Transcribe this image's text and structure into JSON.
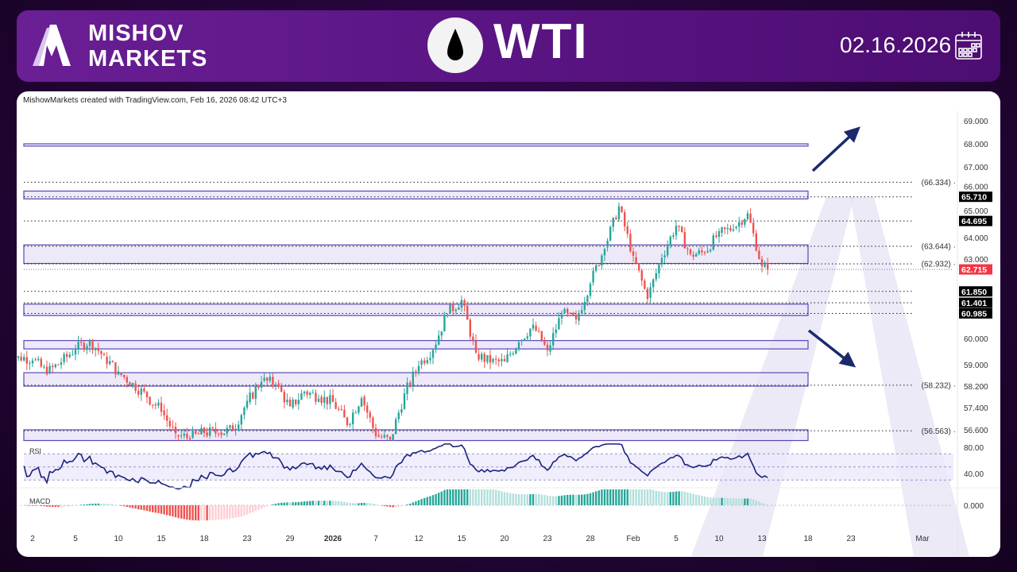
{
  "header": {
    "brand_line1": "MISHOV",
    "brand_line2": "MARKETS",
    "title": "WTI",
    "date": "02.16.2026"
  },
  "credit": "MishowMarkets created with TradingView.com, Feb 16, 2026 08:42 UTC+3",
  "colors": {
    "up": "#26a69a",
    "down": "#ef5350",
    "zone_fill": "#e8e4f8",
    "zone_border": "#5b45b8",
    "rsi_line": "#1a237e",
    "arrow": "#1a2a6c"
  },
  "chart_data": {
    "type": "candlestick",
    "symbol": "WTI",
    "dates": [
      "2025-12-01",
      "2025-12-02",
      "2025-12-03",
      "2025-12-04",
      "2025-12-05",
      "2025-12-08",
      "2025-12-09",
      "2025-12-10",
      "2025-12-11",
      "2025-12-12",
      "2025-12-15",
      "2025-12-16",
      "2025-12-17",
      "2025-12-18",
      "2025-12-19",
      "2025-12-22",
      "2025-12-23",
      "2025-12-24",
      "2025-12-26",
      "2025-12-29",
      "2025-12-30",
      "2025-12-31",
      "2026-01-02",
      "2026-01-05",
      "2026-01-06",
      "2026-01-07",
      "2026-01-08",
      "2026-01-09",
      "2026-01-12",
      "2026-01-13",
      "2026-01-14",
      "2026-01-15",
      "2026-01-16",
      "2026-01-19",
      "2026-01-20",
      "2026-01-21",
      "2026-01-22",
      "2026-01-23",
      "2026-01-26",
      "2026-01-27",
      "2026-01-28",
      "2026-01-29",
      "2026-01-30",
      "2026-02-02",
      "2026-02-03",
      "2026-02-04",
      "2026-02-05",
      "2026-02-06",
      "2026-02-09",
      "2026-02-10",
      "2026-02-11",
      "2026-02-12",
      "2026-02-13",
      "2026-02-16"
    ],
    "close": [
      59.3,
      59.2,
      58.7,
      59.1,
      59.6,
      59.9,
      59.3,
      58.7,
      58.3,
      57.8,
      57.3,
      56.4,
      56.3,
      56.5,
      56.5,
      56.6,
      57.6,
      58.4,
      58.3,
      57.4,
      58.0,
      57.8,
      57.6,
      56.8,
      57.8,
      56.4,
      56.2,
      57.9,
      59.0,
      59.6,
      61.0,
      61.5,
      59.4,
      59.1,
      59.1,
      59.9,
      60.5,
      59.5,
      61.0,
      60.7,
      62.2,
      63.6,
      65.3,
      63.2,
      61.6,
      63.2,
      64.5,
      63.3,
      63.4,
      64.2,
      64.4,
      65.0,
      62.8,
      62.715
    ],
    "x_tick_labels": [
      {
        "label": "2",
        "date": "2025-12-02"
      },
      {
        "label": "5",
        "date": "2025-12-05"
      },
      {
        "label": "10",
        "date": "2025-12-10"
      },
      {
        "label": "15",
        "date": "2025-12-15"
      },
      {
        "label": "18",
        "date": "2025-12-18"
      },
      {
        "label": "23",
        "date": "2025-12-23"
      },
      {
        "label": "29",
        "date": "2025-12-29"
      },
      {
        "label": "2026",
        "date": "2026-01-02",
        "bold": true
      },
      {
        "label": "7",
        "date": "2026-01-07"
      },
      {
        "label": "12",
        "date": "2026-01-12"
      },
      {
        "label": "15",
        "date": "2026-01-15"
      },
      {
        "label": "20",
        "date": "2026-01-20"
      },
      {
        "label": "23",
        "date": "2026-01-23"
      },
      {
        "label": "28",
        "date": "2026-01-28"
      },
      {
        "label": "Feb",
        "date": "2026-02-02"
      },
      {
        "label": "5",
        "date": "2026-02-05"
      },
      {
        "label": "10",
        "date": "2026-02-10"
      },
      {
        "label": "13",
        "date": "2026-02-13"
      },
      {
        "label": "18",
        "date": "2026-02-18"
      },
      {
        "label": "23",
        "date": "2026-02-23"
      },
      {
        "label": "Mar",
        "date": "2026-03-02"
      }
    ],
    "y_tick_labels": [
      "69.000",
      "68.000",
      "67.000",
      "66.000",
      "65.000",
      "64.000",
      "63.000",
      "60.000",
      "59.000",
      "58.200",
      "57.400",
      "56.600"
    ],
    "zones": [
      [
        67.9,
        68.0
      ],
      [
        65.62,
        65.95
      ],
      [
        62.95,
        63.7
      ],
      [
        60.9,
        61.35
      ],
      [
        59.6,
        59.92
      ],
      [
        58.2,
        58.7
      ],
      [
        56.2,
        56.6
      ]
    ],
    "levels_bracketed": [
      {
        "value": 66.334,
        "label": "(66.334)"
      },
      {
        "value": 63.644,
        "label": "(63.644)"
      },
      {
        "value": 62.932,
        "label": "(62.932)"
      },
      {
        "value": 58.232,
        "label": "(58.232)"
      },
      {
        "value": 56.563,
        "label": "(56.563)"
      }
    ],
    "levels_tagged": [
      {
        "value": 65.71,
        "label": "65.710"
      },
      {
        "value": 64.695,
        "label": "64.695"
      },
      {
        "value": 61.85,
        "label": "61.850"
      },
      {
        "value": 61.401,
        "label": "61.401"
      },
      {
        "value": 60.985,
        "label": "60.985"
      }
    ],
    "last_price": {
      "value": 62.715,
      "label": "62.715"
    },
    "arrows": [
      {
        "direction": "up"
      },
      {
        "direction": "down"
      }
    ],
    "rsi": {
      "label": "RSI",
      "levels": [
        70,
        50,
        30
      ],
      "tick_labels": [
        "80.00",
        "40.00"
      ]
    },
    "macd": {
      "label": "MACD",
      "tick_label": "0.000"
    },
    "grid": false
  }
}
